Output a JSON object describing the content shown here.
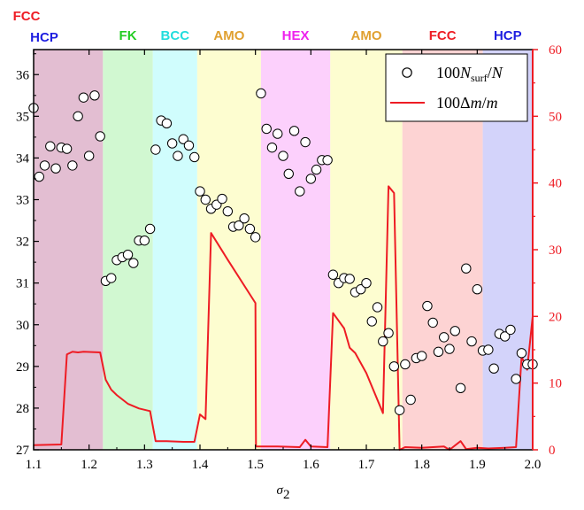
{
  "chart_data": {
    "type": "scatter+line",
    "xlabel": "σ2",
    "xlim": [
      1.1,
      2.0
    ],
    "x_ticks": [
      "1.1",
      "1.2",
      "1.3",
      "1.4",
      "1.5",
      "1.6",
      "1.7",
      "1.8",
      "1.9",
      "2.0"
    ],
    "ylim_left": [
      27,
      36.6
    ],
    "y_left_ticks": [
      "27",
      "28",
      "29",
      "30",
      "31",
      "32",
      "33",
      "34",
      "35",
      "36"
    ],
    "ylim_right": [
      0,
      60
    ],
    "y_right_ticks": [
      "0",
      "10",
      "20",
      "30",
      "40",
      "50",
      "60"
    ],
    "legend_position": "top-right",
    "legend": {
      "series1": "100N_surf/N",
      "series2": "100Δm/m"
    },
    "phase_regions": [
      {
        "label": "FCC",
        "label2": "HCP",
        "x0": 1.1,
        "x1": 1.225,
        "color": "#e3bed2",
        "text_color": "#ee1c24",
        "text_color2": "#1d1de0"
      },
      {
        "label": "FK",
        "x0": 1.225,
        "x1": 1.315,
        "color": "#d1f8d1",
        "text_color": "#22cc22"
      },
      {
        "label": "BCC",
        "x0": 1.315,
        "x1": 1.395,
        "color": "#d0fdfd",
        "text_color": "#22dddd"
      },
      {
        "label": "AMO",
        "x0": 1.395,
        "x1": 1.51,
        "color": "#fdfdd0",
        "text_color": "#e0a030"
      },
      {
        "label": "HEX",
        "x0": 1.51,
        "x1": 1.635,
        "color": "#fcd0fc",
        "text_color": "#ee22ee"
      },
      {
        "label": "AMO",
        "x0": 1.635,
        "x1": 1.765,
        "color": "#fdfdd0",
        "text_color": "#e0a030"
      },
      {
        "label": "FCC",
        "x0": 1.765,
        "x1": 1.91,
        "color": "#fdd3d3",
        "text_color": "#ee1c24"
      },
      {
        "label": "HCP",
        "x0": 1.91,
        "x1": 2.0,
        "color": "#d3d3fa",
        "text_color": "#1d1de0"
      }
    ],
    "series": [
      {
        "name": "100N_surf/N",
        "axis": "left",
        "marker": "open-circle",
        "points": [
          [
            1.1,
            35.2
          ],
          [
            1.11,
            33.55
          ],
          [
            1.12,
            33.82
          ],
          [
            1.13,
            34.28
          ],
          [
            1.14,
            33.75
          ],
          [
            1.15,
            34.25
          ],
          [
            1.16,
            34.22
          ],
          [
            1.17,
            33.82
          ],
          [
            1.18,
            35.0
          ],
          [
            1.19,
            35.45
          ],
          [
            1.2,
            34.05
          ],
          [
            1.21,
            35.5
          ],
          [
            1.22,
            34.52
          ],
          [
            1.23,
            31.05
          ],
          [
            1.24,
            31.12
          ],
          [
            1.25,
            31.55
          ],
          [
            1.26,
            31.62
          ],
          [
            1.27,
            31.68
          ],
          [
            1.28,
            31.48
          ],
          [
            1.29,
            32.02
          ],
          [
            1.3,
            32.02
          ],
          [
            1.31,
            32.3
          ],
          [
            1.32,
            34.2
          ],
          [
            1.33,
            34.9
          ],
          [
            1.34,
            34.83
          ],
          [
            1.35,
            34.35
          ],
          [
            1.36,
            34.05
          ],
          [
            1.37,
            34.45
          ],
          [
            1.38,
            34.3
          ],
          [
            1.39,
            34.02
          ],
          [
            1.4,
            33.2
          ],
          [
            1.41,
            33.0
          ],
          [
            1.42,
            32.78
          ],
          [
            1.43,
            32.88
          ],
          [
            1.44,
            33.02
          ],
          [
            1.45,
            32.72
          ],
          [
            1.46,
            32.35
          ],
          [
            1.47,
            32.38
          ],
          [
            1.48,
            32.55
          ],
          [
            1.49,
            32.3
          ],
          [
            1.5,
            32.1
          ],
          [
            1.51,
            35.55
          ],
          [
            1.52,
            34.7
          ],
          [
            1.53,
            34.25
          ],
          [
            1.54,
            34.58
          ],
          [
            1.55,
            34.05
          ],
          [
            1.56,
            33.62
          ],
          [
            1.57,
            34.65
          ],
          [
            1.58,
            33.2
          ],
          [
            1.59,
            34.38
          ],
          [
            1.6,
            33.5
          ],
          [
            1.61,
            33.72
          ],
          [
            1.62,
            33.95
          ],
          [
            1.63,
            33.95
          ],
          [
            1.64,
            31.2
          ],
          [
            1.65,
            31.0
          ],
          [
            1.66,
            31.12
          ],
          [
            1.67,
            31.1
          ],
          [
            1.68,
            30.78
          ],
          [
            1.69,
            30.85
          ],
          [
            1.7,
            31.0
          ],
          [
            1.71,
            30.08
          ],
          [
            1.72,
            30.42
          ],
          [
            1.73,
            29.6
          ],
          [
            1.74,
            29.8
          ],
          [
            1.75,
            29.0
          ],
          [
            1.76,
            27.95
          ],
          [
            1.77,
            29.05
          ],
          [
            1.78,
            28.2
          ],
          [
            1.79,
            29.2
          ],
          [
            1.8,
            29.25
          ],
          [
            1.81,
            30.45
          ],
          [
            1.82,
            30.05
          ],
          [
            1.83,
            29.35
          ],
          [
            1.84,
            29.7
          ],
          [
            1.85,
            29.42
          ],
          [
            1.86,
            29.85
          ],
          [
            1.87,
            28.48
          ],
          [
            1.88,
            31.35
          ],
          [
            1.89,
            29.6
          ],
          [
            1.9,
            30.85
          ],
          [
            1.91,
            29.38
          ],
          [
            1.92,
            29.4
          ],
          [
            1.93,
            28.95
          ],
          [
            1.94,
            29.78
          ],
          [
            1.95,
            29.72
          ],
          [
            1.96,
            29.88
          ],
          [
            1.97,
            28.7
          ],
          [
            1.98,
            29.32
          ],
          [
            1.99,
            29.05
          ],
          [
            2.0,
            29.05
          ]
        ]
      },
      {
        "name": "100Δm/m",
        "axis": "right",
        "color": "#ee1c24",
        "points": [
          [
            1.1,
            0.7
          ],
          [
            1.15,
            0.8
          ],
          [
            1.16,
            14.3
          ],
          [
            1.17,
            14.7
          ],
          [
            1.18,
            14.6
          ],
          [
            1.19,
            14.7
          ],
          [
            1.22,
            14.6
          ],
          [
            1.23,
            10.5
          ],
          [
            1.24,
            9.0
          ],
          [
            1.25,
            8.2
          ],
          [
            1.27,
            6.9
          ],
          [
            1.29,
            6.2
          ],
          [
            1.31,
            5.8
          ],
          [
            1.32,
            1.3
          ],
          [
            1.34,
            1.3
          ],
          [
            1.37,
            1.2
          ],
          [
            1.39,
            1.2
          ],
          [
            1.4,
            5.3
          ],
          [
            1.41,
            4.6
          ],
          [
            1.42,
            32.5
          ],
          [
            1.45,
            28.5
          ],
          [
            1.5,
            22.0
          ],
          [
            1.501,
            0.5
          ],
          [
            1.54,
            0.5
          ],
          [
            1.58,
            0.4
          ],
          [
            1.59,
            1.5
          ],
          [
            1.6,
            0.5
          ],
          [
            1.63,
            0.4
          ],
          [
            1.64,
            20.5
          ],
          [
            1.66,
            18.2
          ],
          [
            1.67,
            15.3
          ],
          [
            1.68,
            14.5
          ],
          [
            1.7,
            11.5
          ],
          [
            1.73,
            5.5
          ],
          [
            1.74,
            39.5
          ],
          [
            1.75,
            38.5
          ],
          [
            1.76,
            0.0
          ],
          [
            1.77,
            0.4
          ],
          [
            1.8,
            0.3
          ],
          [
            1.84,
            0.5
          ],
          [
            1.85,
            0.0
          ],
          [
            1.87,
            1.3
          ],
          [
            1.88,
            0.1
          ],
          [
            1.9,
            0.3
          ],
          [
            1.92,
            0.2
          ],
          [
            1.95,
            0.3
          ],
          [
            1.97,
            0.4
          ],
          [
            1.98,
            14.0
          ],
          [
            1.99,
            12.0
          ],
          [
            2.0,
            20.0
          ]
        ]
      }
    ]
  },
  "colors": {
    "axis": "#000000",
    "right_axis": "#ee1c24",
    "line": "#ee1c24",
    "marker_fill": "#ffffff",
    "marker_stroke": "#000000"
  }
}
